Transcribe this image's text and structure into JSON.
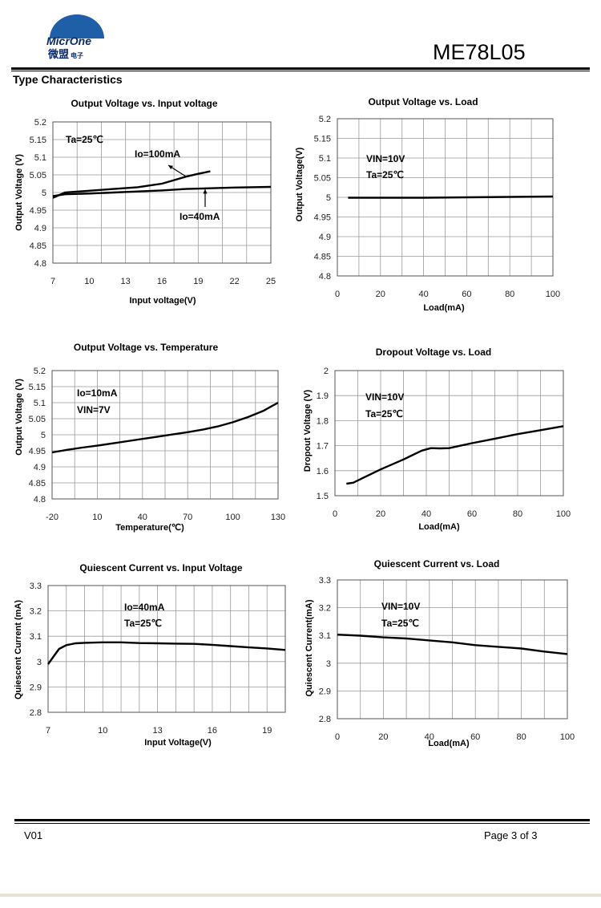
{
  "header": {
    "logo_text": "MicrOne",
    "logo_cn": "微盟",
    "logo_cn_small": "电子",
    "part_number": "ME78L05",
    "section_title": "Type Characteristics"
  },
  "footer": {
    "version": "V01",
    "page": "Page 3 of 3"
  },
  "chart_data": [
    {
      "id": "c1",
      "type": "line",
      "title": "Output Voltage vs. Input voltage",
      "xlabel": "Input voltage(V)",
      "ylabel": "Output Voltage (V)",
      "xlim": [
        7,
        25
      ],
      "ylim": [
        4.8,
        5.2
      ],
      "xticks": [
        7,
        10,
        13,
        16,
        19,
        22,
        25
      ],
      "yticks": [
        4.8,
        4.85,
        4.9,
        4.95,
        5,
        5.05,
        5.1,
        5.15,
        5.2
      ],
      "ytick_labels": [
        "4.8",
        "4.85",
        "4.9",
        "4.95",
        "5",
        "5.05",
        "5.1",
        "5.15",
        "5.2"
      ],
      "xgrid": 9,
      "grid": true,
      "annotations": [
        "Ta=25℃",
        "Io=100mA",
        "Io=40mA"
      ],
      "series": [
        {
          "name": "Io=100mA",
          "x": [
            7,
            8,
            10,
            12,
            14,
            15,
            16,
            17,
            18,
            19,
            20
          ],
          "y": [
            4.985,
            5.0,
            5.005,
            5.01,
            5.015,
            5.02,
            5.025,
            5.035,
            5.045,
            5.053,
            5.06
          ]
        },
        {
          "name": "Io=40mA",
          "x": [
            7,
            8,
            10,
            12,
            14,
            16,
            18,
            20,
            22,
            25
          ],
          "y": [
            4.99,
            4.995,
            4.997,
            5.0,
            5.003,
            5.006,
            5.01,
            5.012,
            5.014,
            5.016
          ]
        }
      ]
    },
    {
      "id": "c2",
      "type": "line",
      "title": "Output Voltage vs. Load",
      "xlabel": "Load(mA)",
      "ylabel": "Output Voltage(V)",
      "xlim": [
        0,
        100
      ],
      "ylim": [
        4.8,
        5.2
      ],
      "xticks": [
        0,
        20,
        40,
        60,
        80,
        100
      ],
      "yticks": [
        4.8,
        4.85,
        4.9,
        4.95,
        5,
        5.05,
        5.1,
        5.15,
        5.2
      ],
      "ytick_labels": [
        "4.8",
        "4.85",
        "4.9",
        "4.95",
        "5",
        "5.05",
        "5.1",
        "5.15",
        "5.2"
      ],
      "xgrid": 10,
      "grid": true,
      "annotations": [
        "VIN=10V",
        "Ta=25℃"
      ],
      "series": [
        {
          "name": "",
          "x": [
            5,
            20,
            40,
            60,
            80,
            100
          ],
          "y": [
            4.999,
            4.999,
            4.999,
            5.0,
            5.001,
            5.002
          ]
        }
      ]
    },
    {
      "id": "c3",
      "type": "line",
      "title": "Output Voltage vs. Temperature",
      "xlabel": "Temperature(℃)",
      "ylabel": "Output Voltage (V)",
      "xlim": [
        -20,
        130
      ],
      "ylim": [
        4.8,
        5.2
      ],
      "xticks": [
        -20,
        10,
        40,
        70,
        100,
        130
      ],
      "yticks": [
        4.8,
        4.85,
        4.9,
        4.95,
        5,
        5.05,
        5.1,
        5.15,
        5.2
      ],
      "ytick_labels": [
        "4.8",
        "4.85",
        "4.9",
        "4.95",
        "5",
        "5.05",
        "5.1",
        "5.15",
        "5.2"
      ],
      "xgrid": 10,
      "grid": true,
      "annotations": [
        "Io=10mA",
        "VIN=7V"
      ],
      "series": [
        {
          "name": "",
          "x": [
            -20,
            -10,
            0,
            10,
            20,
            30,
            40,
            50,
            60,
            70,
            80,
            90,
            100,
            110,
            120,
            130
          ],
          "y": [
            4.945,
            4.953,
            4.96,
            4.966,
            4.973,
            4.98,
            4.987,
            4.994,
            5.001,
            5.008,
            5.016,
            5.026,
            5.039,
            5.055,
            5.074,
            5.1
          ]
        }
      ]
    },
    {
      "id": "c4",
      "type": "line",
      "title": "Dropout Voltage vs. Load",
      "xlabel": "Load(mA)",
      "ylabel": "Dropout Voltage (V)",
      "xlim": [
        0,
        100
      ],
      "ylim": [
        1.5,
        2.0
      ],
      "xticks": [
        0,
        20,
        40,
        60,
        80,
        100
      ],
      "yticks": [
        1.5,
        1.6,
        1.7,
        1.8,
        1.9,
        2.0
      ],
      "ytick_labels": [
        "1.5",
        "1.6",
        "1.7",
        "1.8",
        "1.9",
        "2"
      ],
      "xgrid": 10,
      "grid": true,
      "annotations": [
        "VIN=10V",
        "Ta=25℃"
      ],
      "series": [
        {
          "name": "",
          "x": [
            5,
            8,
            12,
            20,
            30,
            38,
            42,
            46,
            50,
            55,
            60,
            70,
            80,
            90,
            100
          ],
          "y": [
            1.548,
            1.552,
            1.57,
            1.605,
            1.645,
            1.68,
            1.69,
            1.689,
            1.69,
            1.7,
            1.71,
            1.728,
            1.746,
            1.762,
            1.778
          ]
        }
      ]
    },
    {
      "id": "c5",
      "type": "line",
      "title": "Quiescent Current vs. Input Voltage",
      "xlabel": "Input Voltage(V)",
      "ylabel": "Quiescent Current (mA)",
      "xlim": [
        7,
        20
      ],
      "ylim": [
        2.8,
        3.3
      ],
      "xticks": [
        7,
        10,
        13,
        16,
        19
      ],
      "yticks": [
        2.8,
        2.9,
        3.0,
        3.1,
        3.2,
        3.3
      ],
      "ytick_labels": [
        "2.8",
        "2.9",
        "3",
        "3.1",
        "3.2",
        "3.3"
      ],
      "xgrid": 13,
      "grid": true,
      "annotations": [
        "Io=40mA",
        "Ta=25℃"
      ],
      "series": [
        {
          "name": "",
          "x": [
            7,
            7.3,
            7.6,
            8,
            8.5,
            9,
            10,
            11,
            12,
            13,
            14,
            15,
            16,
            17,
            18,
            19,
            20
          ],
          "y": [
            2.99,
            3.02,
            3.05,
            3.065,
            3.072,
            3.074,
            3.076,
            3.076,
            3.073,
            3.072,
            3.071,
            3.07,
            3.066,
            3.061,
            3.056,
            3.052,
            3.046
          ]
        }
      ]
    },
    {
      "id": "c6",
      "type": "line",
      "title": "Quiescent Current vs. Load",
      "xlabel": "Load(mA)",
      "ylabel": "Quiescent Current(mA)",
      "xlim": [
        0,
        100
      ],
      "ylim": [
        2.8,
        3.3
      ],
      "xticks": [
        0,
        20,
        40,
        60,
        80,
        100
      ],
      "yticks": [
        2.8,
        2.9,
        3.0,
        3.1,
        3.2,
        3.3
      ],
      "ytick_labels": [
        "2.8",
        "2.9",
        "3",
        "3.1",
        "3.2",
        "3.3"
      ],
      "xgrid": 10,
      "grid": true,
      "annotations": [
        "VIN=10V",
        "Ta=25℃"
      ],
      "series": [
        {
          "name": "",
          "x": [
            0,
            10,
            20,
            30,
            40,
            50,
            60,
            70,
            80,
            90,
            100
          ],
          "y": [
            3.103,
            3.099,
            3.093,
            3.089,
            3.082,
            3.075,
            3.065,
            3.059,
            3.053,
            3.042,
            3.033
          ]
        }
      ]
    }
  ]
}
